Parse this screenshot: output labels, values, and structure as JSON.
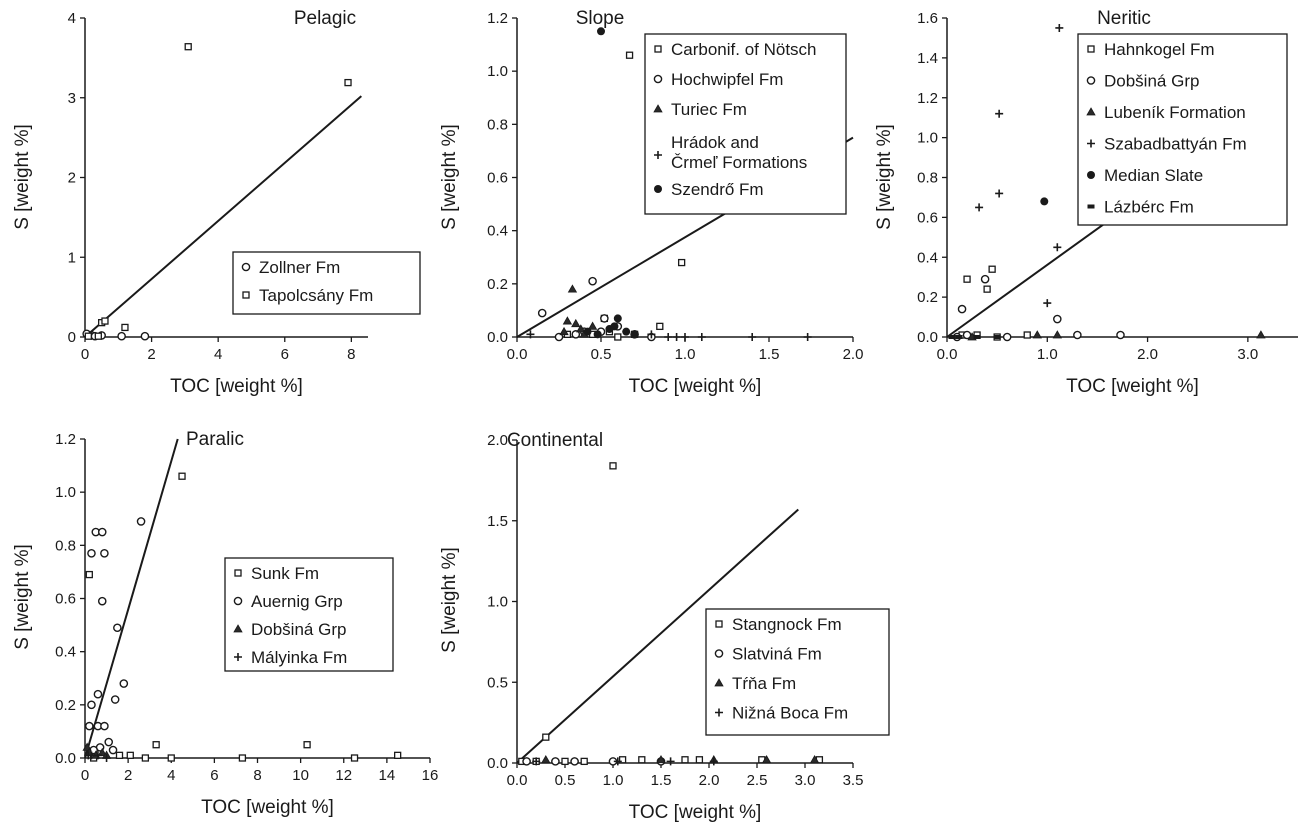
{
  "chart_data": [
    {
      "type": "scatter",
      "title": "Pelagic",
      "xlabel": "TOC [weight %]",
      "ylabel": "S [weight %]",
      "xlim": [
        0,
        8.5
      ],
      "ylim": [
        0,
        4
      ],
      "xticks": [
        0,
        2,
        4,
        6,
        8
      ],
      "xtick_labels": [
        "0",
        "2",
        "4",
        "6",
        "8"
      ],
      "yticks": [
        0,
        1,
        2,
        3,
        4
      ],
      "ytick_labels": [
        "0",
        "1",
        "2",
        "3",
        "4"
      ],
      "legend_position": "lower-right",
      "trend_line": {
        "x": [
          0,
          8.3
        ],
        "y": [
          0,
          3.02
        ]
      },
      "series": [
        {
          "name": "Zollner Fm",
          "marker": "circle",
          "points": [
            [
              0.05,
              0.04
            ],
            [
              0.2,
              0.02
            ],
            [
              0.3,
              0.01
            ],
            [
              0.5,
              0.02
            ],
            [
              1.1,
              0.01
            ],
            [
              1.8,
              0.01
            ]
          ]
        },
        {
          "name": "Tapolcsány Fm",
          "marker": "square",
          "points": [
            [
              3.1,
              3.64
            ],
            [
              7.9,
              3.19
            ],
            [
              1.2,
              0.12
            ],
            [
              0.5,
              0.18
            ],
            [
              0.6,
              0.2
            ],
            [
              0.4,
              0.01
            ],
            [
              0.1,
              0.01
            ]
          ]
        }
      ]
    },
    {
      "type": "scatter",
      "title": "Slope",
      "xlabel": "TOC [weight %]",
      "ylabel": "S [weight %]",
      "xlim": [
        0,
        2.0
      ],
      "ylim": [
        0,
        1.2
      ],
      "xticks": [
        0,
        0.5,
        1.0,
        1.5,
        2.0
      ],
      "xtick_labels": [
        "0.0",
        "0.5",
        "1.0",
        "1.5",
        "2.0"
      ],
      "yticks": [
        0,
        0.2,
        0.4,
        0.6,
        0.8,
        1.0,
        1.2
      ],
      "ytick_labels": [
        "0.0",
        "0.2",
        "0.4",
        "0.6",
        "0.8",
        "1.0",
        "1.2"
      ],
      "legend_position": "top-right",
      "trend_line": {
        "x": [
          0,
          2.0
        ],
        "y": [
          0,
          0.75
        ]
      },
      "series": [
        {
          "name": "Carbonif. of Nötsch",
          "marker": "square",
          "points": [
            [
              0.67,
              1.06
            ],
            [
              0.98,
              0.28
            ],
            [
              0.52,
              0.07
            ],
            [
              0.85,
              0.04
            ],
            [
              0.55,
              0.02
            ],
            [
              0.45,
              0.01
            ],
            [
              0.6,
              0.0
            ],
            [
              0.7,
              0.01
            ],
            [
              0.3,
              0.01
            ]
          ]
        },
        {
          "name": "Hochwipfel Fm",
          "marker": "circle",
          "points": [
            [
              0.45,
              0.21
            ],
            [
              0.15,
              0.09
            ],
            [
              0.52,
              0.07
            ],
            [
              0.6,
              0.04
            ],
            [
              0.4,
              0.02
            ],
            [
              0.7,
              0.01
            ],
            [
              0.8,
              0.0
            ],
            [
              0.35,
              0.01
            ],
            [
              0.5,
              0.02
            ],
            [
              0.25,
              0.0
            ]
          ]
        },
        {
          "name": "Turiec Fm",
          "marker": "triangle",
          "points": [
            [
              0.33,
              0.18
            ],
            [
              0.3,
              0.06
            ],
            [
              0.38,
              0.03
            ],
            [
              0.4,
              0.01
            ],
            [
              0.35,
              0.05
            ],
            [
              0.28,
              0.02
            ],
            [
              0.45,
              0.04
            ]
          ]
        },
        {
          "name": "Hrádok and Črmeľ Formations",
          "marker": "plus",
          "points": [
            [
              0.08,
              0.01
            ],
            [
              0.9,
              0.0
            ],
            [
              1.0,
              0.0
            ],
            [
              1.1,
              0.0
            ],
            [
              1.4,
              0.0
            ],
            [
              1.73,
              0.0
            ],
            [
              0.8,
              0.01
            ],
            [
              0.95,
              0.0
            ]
          ]
        },
        {
          "name": "Szendrő Fm",
          "marker": "dot",
          "points": [
            [
              0.5,
              1.15
            ],
            [
              0.42,
              0.02
            ],
            [
              0.6,
              0.07
            ],
            [
              0.55,
              0.03
            ],
            [
              0.48,
              0.01
            ],
            [
              0.65,
              0.02
            ],
            [
              0.7,
              0.01
            ],
            [
              0.58,
              0.04
            ]
          ]
        }
      ]
    },
    {
      "type": "scatter",
      "title": "Neritic",
      "xlabel": "TOC [weight %]",
      "ylabel": "S [weight %]",
      "xlim": [
        0,
        3.5
      ],
      "ylim": [
        0,
        1.6
      ],
      "xticks": [
        0,
        1.0,
        2.0,
        3.0
      ],
      "xtick_labels": [
        "0.0",
        "1.0",
        "2.0",
        "3.0"
      ],
      "yticks": [
        0,
        0.2,
        0.4,
        0.6,
        0.8,
        1.0,
        1.2,
        1.4,
        1.6
      ],
      "ytick_labels": [
        "0.0",
        "0.2",
        "0.4",
        "0.6",
        "0.8",
        "1.0",
        "1.2",
        "1.4",
        "1.6"
      ],
      "legend_position": "top-right",
      "trend_line": {
        "x": [
          0,
          2.1
        ],
        "y": [
          0,
          0.76
        ]
      },
      "series": [
        {
          "name": "Hahnkogel Fm",
          "marker": "square",
          "points": [
            [
              0.2,
              0.29
            ],
            [
              0.45,
              0.34
            ],
            [
              0.4,
              0.24
            ],
            [
              0.3,
              0.01
            ],
            [
              0.8,
              0.01
            ],
            [
              0.15,
              0.01
            ],
            [
              0.5,
              0.0
            ]
          ]
        },
        {
          "name": "Dobšiná Grp",
          "marker": "circle",
          "points": [
            [
              0.15,
              0.14
            ],
            [
              0.38,
              0.29
            ],
            [
              1.1,
              0.09
            ],
            [
              1.3,
              0.01
            ],
            [
              1.73,
              0.01
            ],
            [
              0.1,
              0.0
            ],
            [
              0.2,
              0.01
            ],
            [
              0.6,
              0.0
            ]
          ]
        },
        {
          "name": "Lubeník Formation",
          "marker": "triangle",
          "points": [
            [
              3.13,
              0.01
            ],
            [
              0.9,
              0.01
            ],
            [
              1.1,
              0.01
            ],
            [
              0.25,
              0.0
            ]
          ]
        },
        {
          "name": "Szabadbattyán Fm",
          "marker": "plus",
          "points": [
            [
              1.12,
              1.55
            ],
            [
              0.52,
              1.12
            ],
            [
              0.52,
              0.72
            ],
            [
              0.32,
              0.65
            ],
            [
              1.1,
              0.45
            ],
            [
              1.0,
              0.17
            ]
          ]
        },
        {
          "name": "Median Slate",
          "marker": "dot",
          "points": [
            [
              0.97,
              0.68
            ]
          ]
        },
        {
          "name": "Lázbérc Fm",
          "marker": "dash",
          "points": [
            [
              0.05,
              0.0
            ],
            [
              0.12,
              0.0
            ],
            [
              0.3,
              0.0
            ],
            [
              0.5,
              0.0
            ]
          ]
        }
      ]
    },
    {
      "type": "scatter",
      "title": "Paralic",
      "xlabel": "TOC [weight %]",
      "ylabel": "S [weight %]",
      "xlim": [
        0,
        16
      ],
      "ylim": [
        0,
        1.2
      ],
      "xticks": [
        0,
        2,
        4,
        6,
        8,
        10,
        12,
        14,
        16
      ],
      "xtick_labels": [
        "0",
        "2",
        "4",
        "6",
        "8",
        "10",
        "12",
        "14",
        "16"
      ],
      "yticks": [
        0,
        0.2,
        0.4,
        0.6,
        0.8,
        1.0,
        1.2
      ],
      "ytick_labels": [
        "0.0",
        "0.2",
        "0.4",
        "0.6",
        "0.8",
        "1.0",
        "1.2"
      ],
      "legend_position": "center-right",
      "trend_line": {
        "x": [
          0,
          4.3
        ],
        "y": [
          0,
          1.2
        ]
      },
      "series": [
        {
          "name": "Sunk Fm",
          "marker": "square",
          "points": [
            [
              4.5,
              1.06
            ],
            [
              0.2,
              0.69
            ],
            [
              10.3,
              0.05
            ],
            [
              3.3,
              0.05
            ],
            [
              14.5,
              0.01
            ],
            [
              12.5,
              0.0
            ],
            [
              7.3,
              0.0
            ],
            [
              4.0,
              0.0
            ],
            [
              2.8,
              0.0
            ],
            [
              2.1,
              0.01
            ],
            [
              1.6,
              0.01
            ],
            [
              0.4,
              0.0
            ]
          ]
        },
        {
          "name": "Auernig Grp",
          "marker": "circle",
          "points": [
            [
              0.5,
              0.85
            ],
            [
              0.8,
              0.85
            ],
            [
              0.3,
              0.77
            ],
            [
              0.9,
              0.77
            ],
            [
              2.6,
              0.89
            ],
            [
              0.8,
              0.59
            ],
            [
              1.5,
              0.49
            ],
            [
              0.6,
              0.24
            ],
            [
              0.3,
              0.2
            ],
            [
              1.8,
              0.28
            ],
            [
              1.4,
              0.22
            ],
            [
              0.6,
              0.12
            ],
            [
              0.9,
              0.12
            ],
            [
              0.2,
              0.12
            ],
            [
              1.1,
              0.06
            ],
            [
              0.7,
              0.04
            ],
            [
              1.3,
              0.03
            ],
            [
              0.4,
              0.03
            ]
          ]
        },
        {
          "name": "Dobšiná Grp",
          "marker": "triangle",
          "points": [
            [
              0.1,
              0.04
            ],
            [
              0.2,
              0.02
            ],
            [
              0.5,
              0.01
            ],
            [
              0.8,
              0.02
            ],
            [
              1.0,
              0.01
            ]
          ]
        },
        {
          "name": "Mályinka Fm",
          "marker": "plus",
          "points": [
            [
              0.3,
              0.01
            ],
            [
              0.6,
              0.01
            ],
            [
              1.0,
              0.0
            ],
            [
              0.15,
              0.01
            ]
          ]
        }
      ]
    },
    {
      "type": "scatter",
      "title": "Continental",
      "xlabel": "TOC [weight %]",
      "ylabel": "S [weight %]",
      "xlim": [
        0,
        3.5
      ],
      "ylim": [
        0,
        2.0
      ],
      "xticks": [
        0,
        0.5,
        1.0,
        1.5,
        2.0,
        2.5,
        3.0,
        3.5
      ],
      "xtick_labels": [
        "0.0",
        "0.5",
        "1.0",
        "1.5",
        "2.0",
        "2.5",
        "3.0",
        "3.5"
      ],
      "yticks": [
        0,
        0.5,
        1.0,
        1.5,
        2.0
      ],
      "ytick_labels": [
        "0.0",
        "0.5",
        "1.0",
        "1.5",
        "2.0"
      ],
      "legend_position": "lower-right",
      "trend_line": {
        "x": [
          0,
          2.93
        ],
        "y": [
          0,
          1.57
        ]
      },
      "series": [
        {
          "name": "Stangnock Fm",
          "marker": "square",
          "points": [
            [
              1.0,
              1.84
            ],
            [
              0.3,
              0.16
            ],
            [
              0.5,
              0.01
            ],
            [
              0.7,
              0.01
            ],
            [
              1.1,
              0.02
            ],
            [
              1.3,
              0.02
            ],
            [
              1.75,
              0.02
            ],
            [
              1.9,
              0.02
            ],
            [
              2.55,
              0.02
            ],
            [
              3.15,
              0.02
            ],
            [
              0.05,
              0.01
            ],
            [
              0.2,
              0.01
            ]
          ]
        },
        {
          "name": "Slatviná Fm",
          "marker": "circle",
          "points": [
            [
              0.1,
              0.01
            ],
            [
              0.4,
              0.01
            ],
            [
              0.6,
              0.01
            ],
            [
              1.0,
              0.01
            ],
            [
              1.5,
              0.01
            ]
          ]
        },
        {
          "name": "Tŕňa Fm",
          "marker": "triangle",
          "points": [
            [
              0.3,
              0.02
            ],
            [
              2.05,
              0.02
            ],
            [
              2.6,
              0.02
            ],
            [
              3.1,
              0.02
            ],
            [
              1.5,
              0.02
            ]
          ]
        },
        {
          "name": "Nižná Boca Fm",
          "marker": "plus",
          "points": [
            [
              0.2,
              0.01
            ],
            [
              1.05,
              0.01
            ],
            [
              1.6,
              0.01
            ],
            [
              2.05,
              0.01
            ]
          ]
        }
      ]
    }
  ]
}
